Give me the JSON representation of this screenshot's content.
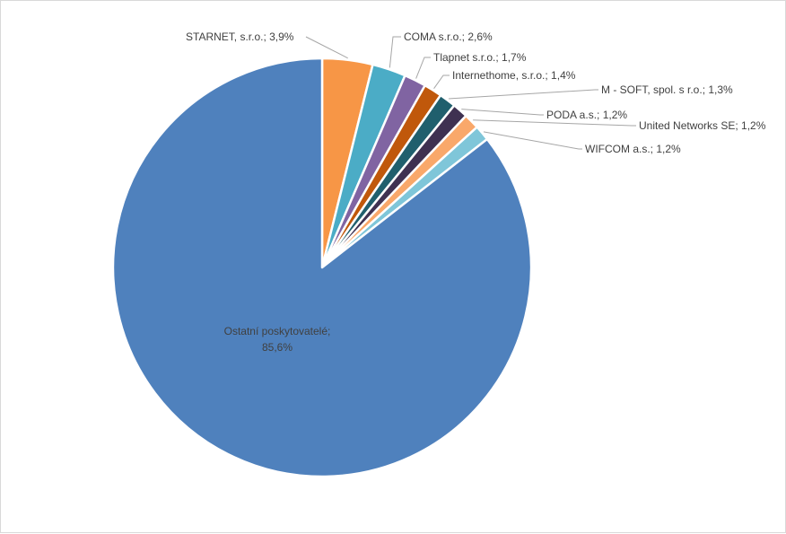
{
  "chart_data": {
    "type": "pie",
    "title": "",
    "slices": [
      {
        "label": "STARNET, s.r.o.",
        "value": 3.9,
        "display": "3,9%",
        "color": "#f79646"
      },
      {
        "label": "COMA s.r.o.",
        "value": 2.6,
        "display": "2,6%",
        "color": "#4bacc6"
      },
      {
        "label": "Tlapnet s.r.o.",
        "value": 1.7,
        "display": "1,7%",
        "color": "#8064a2"
      },
      {
        "label": "Internethome, s.r.o.",
        "value": 1.4,
        "display": "1,4%",
        "color": "#c0580b"
      },
      {
        "label": "M - SOFT, spol. s r.o.",
        "value": 1.3,
        "display": "1,3%",
        "color": "#205f6d"
      },
      {
        "label": "PODA a.s.",
        "value": 1.2,
        "display": "1,2%",
        "color": "#3f3151"
      },
      {
        "label": "United Networks SE",
        "value": 1.2,
        "display": "1,2%",
        "color": "#f9a86a"
      },
      {
        "label": "WIFCOM a.s.",
        "value": 1.2,
        "display": "1,2%",
        "color": "#7fc6d9"
      },
      {
        "label": "Ostatní poskytovatelé",
        "value": 85.6,
        "display": "85,6%",
        "color": "#4f81bd"
      }
    ]
  }
}
